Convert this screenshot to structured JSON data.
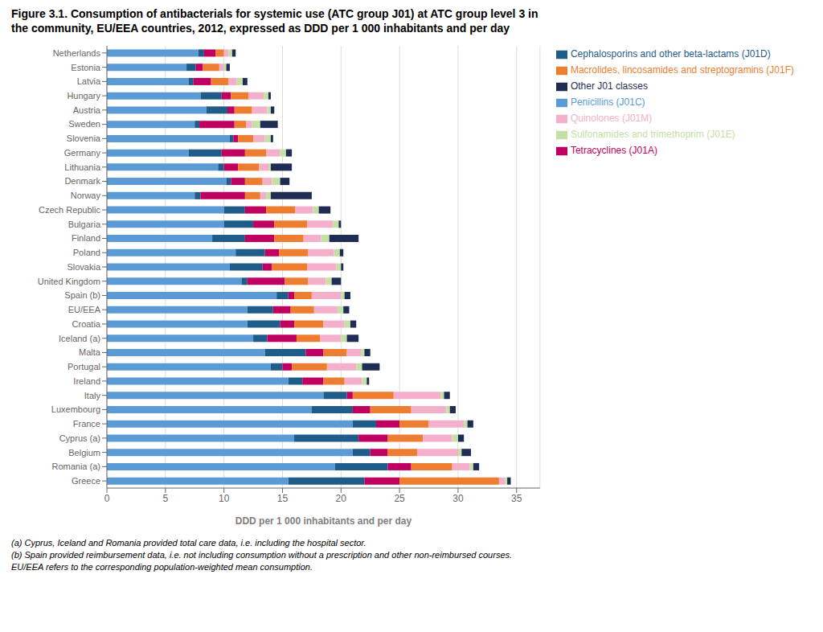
{
  "chart_data": {
    "type": "bar",
    "orientation": "horizontal",
    "stacked": true,
    "grid": true,
    "legend": "right",
    "title": "Figure 3.1. Consumption of antibacterials for systemic use (ATC group J01) at ATC group level 3 in\nthe community, EU/EEA countries, 2012, expressed as DDD per 1 000 inhabitants and per day",
    "xlabel": "DDD per 1 000 inhabitants and per day",
    "xlim": [
      0,
      37
    ],
    "xticks": [
      0,
      5,
      10,
      15,
      20,
      25,
      30,
      35
    ],
    "annotations": [
      "(a) Cyprus, Iceland and Romania provided total care data, i.e. including the hospital sector.",
      "(b) Spain provided reimbursement data, i.e. not including consumption without a prescription and other non-reimbursed courses.",
      "EU/EEA refers to the corresponding population-weighted mean consumption."
    ],
    "categories": [
      "Netherlands",
      "Estonia",
      "Latvia",
      "Hungary",
      "Austria",
      "Sweden",
      "Slovenia",
      "Germany",
      "Lithuania",
      "Denmark",
      "Norway",
      "Czech Republic",
      "Bulgaria",
      "Finland",
      "Poland",
      "Slovakia",
      "United Kingdom",
      "Spain (b)",
      "EU/EEA",
      "Croatia",
      "Iceland (a)",
      "Malta",
      "Portugal",
      "Ireland",
      "Italy",
      "Luxembourg",
      "France",
      "Cyprus (a)",
      "Belgium",
      "Romania (a)",
      "Greece"
    ],
    "series": [
      {
        "name": "Penicillins (J01C)",
        "color": "#5B9BD5",
        "values": [
          7.8,
          6.8,
          7.0,
          8.0,
          8.5,
          7.5,
          10.5,
          7.0,
          9.5,
          10.2,
          7.5,
          10.0,
          10.0,
          9.0,
          11.0,
          10.5,
          11.5,
          14.5,
          12.0,
          12.0,
          12.5,
          13.5,
          14.0,
          15.5,
          18.5,
          17.5,
          21.0,
          16.0,
          21.0,
          19.5,
          15.5
        ]
      },
      {
        "name": "Cephalosporins and other beta-lactams (J01D)",
        "color": "#1F5C8A",
        "values": [
          0.5,
          0.8,
          0.4,
          1.8,
          1.8,
          0.4,
          0.3,
          2.8,
          0.5,
          0.4,
          0.5,
          1.8,
          2.5,
          2.8,
          2.5,
          2.8,
          0.5,
          1.0,
          2.2,
          2.8,
          1.2,
          3.5,
          1.0,
          1.2,
          2.0,
          3.5,
          2.0,
          5.5,
          1.5,
          4.5,
          6.5
        ]
      },
      {
        "name": "Tetracyclines (J01A)",
        "color": "#C00060",
        "values": [
          1.0,
          0.6,
          1.5,
          0.8,
          0.6,
          3.0,
          0.4,
          2.0,
          1.2,
          1.2,
          3.8,
          1.8,
          1.8,
          2.5,
          1.2,
          0.8,
          3.2,
          0.5,
          1.5,
          1.2,
          2.5,
          1.5,
          0.8,
          1.8,
          0.5,
          1.5,
          2.0,
          2.5,
          1.5,
          2.0,
          3.0
        ]
      },
      {
        "name": "Macrolides, lincosamides and streptogramins (J01F)",
        "color": "#ED7D31",
        "values": [
          0.7,
          1.4,
          1.5,
          1.5,
          1.5,
          1.0,
          1.3,
          1.8,
          1.8,
          1.5,
          1.3,
          2.5,
          2.8,
          2.5,
          2.5,
          3.0,
          2.0,
          1.5,
          2.0,
          2.5,
          2.0,
          2.0,
          3.0,
          1.8,
          3.5,
          3.5,
          2.5,
          3.0,
          2.5,
          3.5,
          8.5
        ]
      },
      {
        "name": "Quinolones (J01M)",
        "color": "#F4AFCA",
        "values": [
          0.4,
          0.4,
          0.7,
          1.3,
          1.3,
          0.5,
          1.0,
          1.2,
          0.8,
          0.8,
          0.5,
          1.5,
          2.2,
          1.5,
          2.2,
          2.5,
          1.5,
          2.5,
          2.0,
          1.8,
          1.8,
          1.2,
          2.5,
          1.5,
          4.0,
          3.0,
          3.0,
          2.5,
          3.5,
          1.5,
          0.5
        ]
      },
      {
        "name": "Sulfonamides and trimethoprim (J01E)",
        "color": "#C5E0A5",
        "values": [
          0.3,
          0.2,
          0.5,
          0.4,
          0.3,
          0.7,
          0.5,
          0.5,
          0.2,
          0.7,
          0.4,
          0.5,
          0.5,
          0.7,
          0.5,
          0.4,
          0.5,
          0.3,
          0.5,
          0.5,
          0.5,
          0.3,
          0.5,
          0.4,
          0.3,
          0.3,
          0.3,
          0.5,
          0.3,
          0.3,
          0.2
        ]
      },
      {
        "name": "Other J01 classes",
        "color": "#1F2D54",
        "values": [
          0.3,
          0.3,
          0.4,
          0.2,
          0.3,
          1.5,
          0.2,
          0.5,
          1.8,
          0.8,
          3.5,
          1.0,
          0.2,
          2.5,
          0.3,
          0.2,
          0.8,
          0.5,
          0.5,
          0.5,
          1.0,
          0.5,
          1.5,
          0.2,
          0.5,
          0.5,
          0.5,
          0.5,
          0.8,
          0.5,
          0.3
        ]
      }
    ]
  }
}
